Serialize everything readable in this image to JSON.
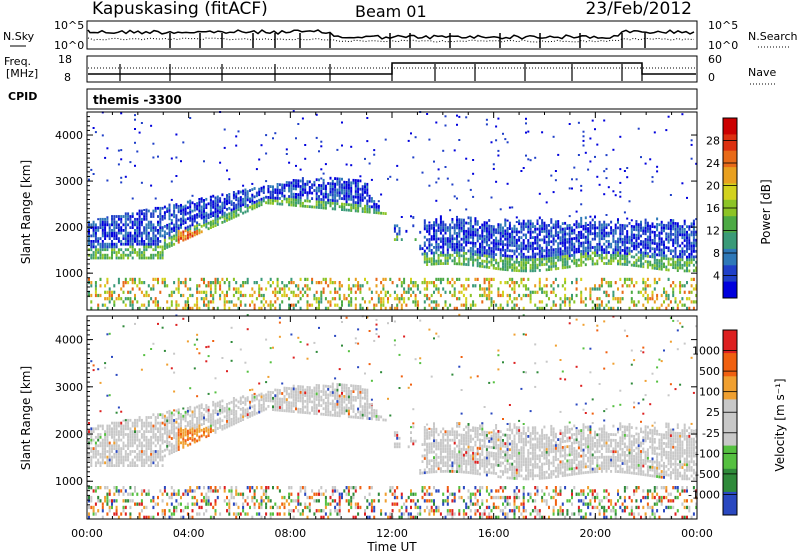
{
  "header": {
    "station": "Kapuskasing (fitACF)",
    "beam": "Beam 01",
    "date": "23/Feb/2012"
  },
  "strips": {
    "nsky_label": "N.Sky",
    "nsearch_label": "N.Search",
    "nsky_ticks": [
      "10^5",
      "10^0"
    ],
    "nsearch_ticks": [
      "10^5",
      "10^0"
    ],
    "freq_label_1": "Freq.",
    "freq_label_2": "[MHz]",
    "freq_ticks": [
      "18",
      "8"
    ],
    "nave_label": "Nave",
    "nave_ticks": [
      "60",
      "0"
    ],
    "cpid_label": "CPID",
    "cpid_value": "themis -3300"
  },
  "chart_data": [
    {
      "type": "heatmap",
      "name": "power",
      "ylabel": "Slant Range [km]",
      "xlabel": "",
      "yticks": [
        1000,
        2000,
        3000,
        4000
      ],
      "ylim": [
        200,
        4500
      ],
      "xticks": [
        "00:00",
        "04:00",
        "08:00",
        "12:00",
        "16:00",
        "20:00",
        "00:00"
      ],
      "colorbar_label": "Power [dB]",
      "colorbar_ticks": [
        "28",
        "24",
        "20",
        "16",
        "12",
        "8",
        "4"
      ],
      "colorbar_colors": [
        "#0000dd",
        "#1f3fc8",
        "#2e78b8",
        "#3a9a78",
        "#4caa44",
        "#8cc426",
        "#d2d21e",
        "#e8a020",
        "#e86a18",
        "#dd3010",
        "#cc0000"
      ]
    },
    {
      "type": "heatmap",
      "name": "velocity",
      "ylabel": "Slant Range [km]",
      "xlabel": "Time UT",
      "yticks": [
        1000,
        2000,
        3000,
        4000
      ],
      "ylim": [
        200,
        4500
      ],
      "xticks": [
        "00:00",
        "04:00",
        "08:00",
        "12:00",
        "16:00",
        "20:00",
        "00:00"
      ],
      "colorbar_label": "Velocity [m s⁻¹]",
      "colorbar_ticks": [
        "1000",
        "500",
        "100",
        "25",
        "-25",
        "-100",
        "-500",
        "-1000"
      ],
      "colorbar_colors": [
        "#2a48c0",
        "#2f8a3a",
        "#55c040",
        "#c8c8c8",
        "#c8c8c8",
        "#f0a030",
        "#f06010",
        "#dd2020"
      ]
    }
  ]
}
